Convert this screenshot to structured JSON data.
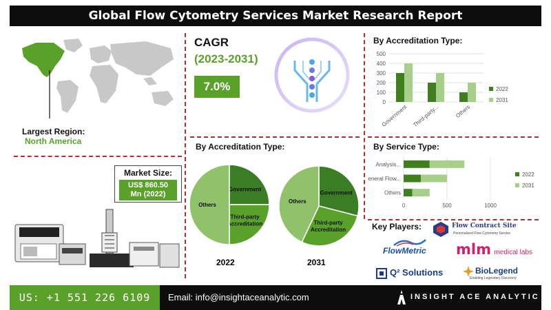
{
  "header": {
    "title": "Global Flow Cytometry Services Market Research Report"
  },
  "region": {
    "label": "Largest Region:",
    "value": "North America"
  },
  "market_size": {
    "label": "Market Size:",
    "value_line1": "US$ 860.50",
    "value_line2": "Mn (2022)"
  },
  "cagr": {
    "title": "CAGR",
    "period": "(2023-2031)",
    "value": "7.0%"
  },
  "colors": {
    "dark_green": "#3f7f1f",
    "mid_green": "#5aa12a",
    "light_green": "#a7cf8a",
    "pie_dark": "#3a7d24",
    "pie_mid": "#5aa12a",
    "pie_light": "#8fc26b"
  },
  "chart_data": [
    {
      "type": "bar",
      "title": "By Accreditation Type:",
      "categories": [
        "Government",
        "Third-party...",
        "Others"
      ],
      "series": [
        {
          "name": "2022",
          "values": [
            300,
            200,
            100
          ]
        },
        {
          "name": "2031",
          "values": [
            400,
            300,
            200
          ]
        }
      ],
      "ylim": [
        0,
        500
      ],
      "yticks": [
        "0",
        "100",
        "200",
        "300",
        "400",
        "500"
      ],
      "legend": "right"
    },
    {
      "type": "bar",
      "orientation": "horizontal-stacked",
      "title": "By Service Type:",
      "categories": [
        "Analysis...",
        "General Flow...",
        "Others"
      ],
      "series": [
        {
          "name": "2022",
          "values": [
            300,
            200,
            100
          ]
        },
        {
          "name": "2031",
          "values": [
            400,
            300,
            200
          ]
        }
      ],
      "xlim": [
        0,
        1000
      ],
      "xticks": [
        "0",
        "500",
        "1000"
      ],
      "legend": "right"
    },
    {
      "type": "pie",
      "title": "By Accreditation Type:",
      "year": "2022",
      "slices": [
        {
          "label": "Government",
          "value": 25
        },
        {
          "label": "Third-party Accreditation",
          "value": 25
        },
        {
          "label": "Others",
          "value": 50
        }
      ]
    },
    {
      "type": "pie",
      "year": "2031",
      "slices": [
        {
          "label": "Government",
          "value": 29
        },
        {
          "label": "Third-party Accreditation",
          "value": 28
        },
        {
          "label": "Others",
          "value": 43
        }
      ]
    }
  ],
  "key_players": {
    "label": "Key Players:",
    "logos": [
      {
        "name": "Flow Contract Site",
        "subtitle": "Personalized Flow Cytometry Service"
      },
      {
        "name": "FlowMetric"
      },
      {
        "name": "mlm",
        "suffix": "medical labs"
      },
      {
        "name": "Q² Solutions"
      },
      {
        "name": "BioLegend",
        "subtitle": "Enabling Legendary Discovery"
      }
    ]
  },
  "footer": {
    "phone": "US: +1 551 226 6109",
    "email": "Email: info@insightaceanalytic.com",
    "brand": "INSIGHT ACE ANALYTIC"
  }
}
